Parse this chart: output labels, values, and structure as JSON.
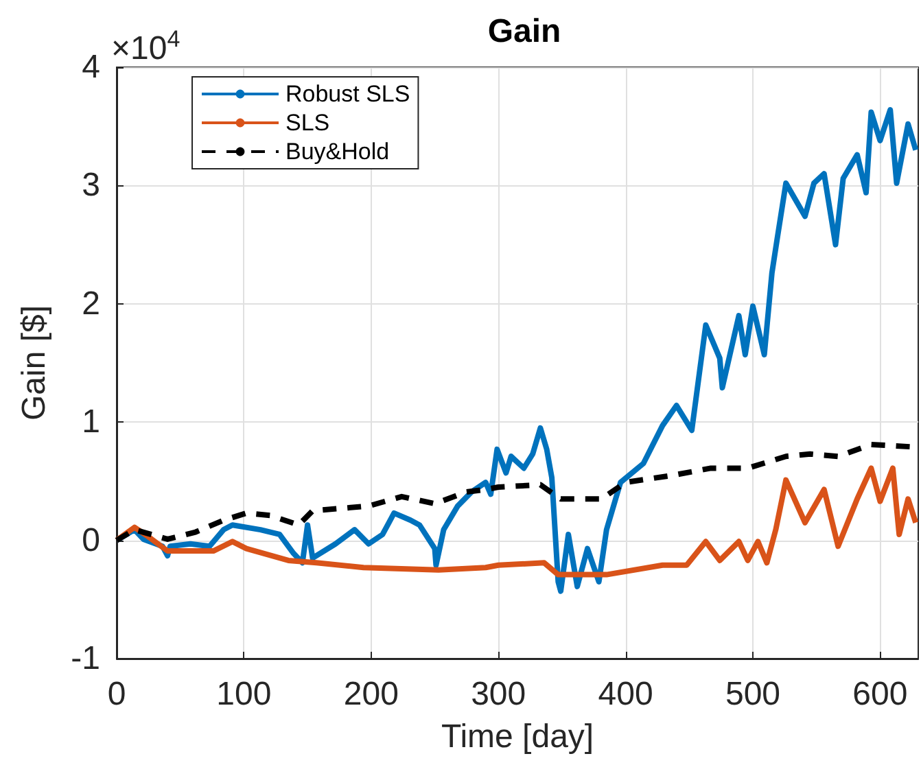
{
  "chart_data": {
    "type": "line",
    "title": "Gain",
    "xlabel": "Time [day]",
    "ylabel": "Gain [$]",
    "annotations": [
      "×10$^{4}$"
    ],
    "xlim": [
      0,
      630
    ],
    "xticks": [
      0,
      100,
      200,
      300,
      400,
      500,
      600
    ],
    "ylim": [
      -1,
      4
    ],
    "yticks": [
      -1,
      0,
      1,
      2,
      3,
      4
    ],
    "grid": true,
    "legend": "top left",
    "series": [
      {
        "name": "Robust SLS",
        "color": "#0072bd",
        "line_style": "solid",
        "x": [
          0,
          14,
          21,
          36,
          40,
          42,
          58,
          73,
          84,
          91,
          113,
          128,
          139,
          146,
          150,
          154,
          172,
          187,
          198,
          209,
          218,
          231,
          238,
          250,
          251,
          257,
          268,
          279,
          290,
          294,
          299,
          306,
          310,
          320,
          327,
          333,
          338,
          342,
          347,
          349,
          355,
          362,
          370,
          379,
          385,
          396,
          414,
          429,
          440,
          452,
          463,
          474,
          476,
          489,
          494,
          500,
          509,
          515,
          519,
          526,
          541,
          548,
          556,
          565,
          571,
          582,
          589,
          593,
          600,
          608,
          613,
          622,
          628
        ],
        "values": [
          0,
          0.09,
          0.01,
          -0.05,
          -0.13,
          -0.05,
          -0.03,
          -0.05,
          0.09,
          0.13,
          0.09,
          0.05,
          -0.11,
          -0.19,
          0.13,
          -0.15,
          -0.03,
          0.09,
          -0.03,
          0.05,
          0.23,
          0.17,
          0.13,
          -0.07,
          -0.21,
          0.09,
          0.29,
          0.41,
          0.49,
          0.39,
          0.77,
          0.57,
          0.71,
          0.61,
          0.73,
          0.95,
          0.77,
          0.53,
          -0.35,
          -0.43,
          0.05,
          -0.39,
          -0.07,
          -0.35,
          0.09,
          0.49,
          0.65,
          0.97,
          1.14,
          0.93,
          1.82,
          1.54,
          1.29,
          1.9,
          1.57,
          1.98,
          1.57,
          2.26,
          2.54,
          3.02,
          2.74,
          3.02,
          3.1,
          2.5,
          3.06,
          3.26,
          2.94,
          3.62,
          3.38,
          3.64,
          3.02,
          3.52,
          3.3
        ]
      },
      {
        "name": "SLS",
        "color": "#d95319",
        "line_style": "solid",
        "x": [
          0,
          14,
          25,
          40,
          76,
          91,
          102,
          135,
          157,
          194,
          253,
          290,
          300,
          336,
          347,
          385,
          429,
          448,
          463,
          474,
          489,
          496,
          504,
          511,
          518,
          526,
          541,
          556,
          567,
          582,
          593,
          600,
          610,
          615,
          622,
          628
        ],
        "values": [
          0,
          0.11,
          0.03,
          -0.09,
          -0.09,
          -0.01,
          -0.07,
          -0.17,
          -0.19,
          -0.23,
          -0.25,
          -0.23,
          -0.21,
          -0.19,
          -0.29,
          -0.29,
          -0.21,
          -0.21,
          -0.01,
          -0.17,
          -0.01,
          -0.17,
          -0.01,
          -0.19,
          0.09,
          0.51,
          0.15,
          0.43,
          -0.05,
          0.35,
          0.61,
          0.33,
          0.61,
          0.05,
          0.35,
          0.15
        ]
      },
      {
        "name": "Buy&Hold",
        "color": "#000000",
        "line_style": "dashed",
        "x": [
          0,
          14,
          40,
          62,
          84,
          102,
          121,
          143,
          154,
          176,
          198,
          224,
          250,
          275,
          290,
          300,
          333,
          349,
          381,
          400,
          437,
          467,
          496,
          526,
          545,
          567,
          593,
          626
        ],
        "values": [
          0,
          0.09,
          0.01,
          0.07,
          0.17,
          0.23,
          0.21,
          0.13,
          0.25,
          0.27,
          0.29,
          0.37,
          0.31,
          0.41,
          0.43,
          0.45,
          0.47,
          0.35,
          0.35,
          0.49,
          0.55,
          0.61,
          0.61,
          0.71,
          0.73,
          0.71,
          0.81,
          0.79
        ]
      }
    ]
  }
}
